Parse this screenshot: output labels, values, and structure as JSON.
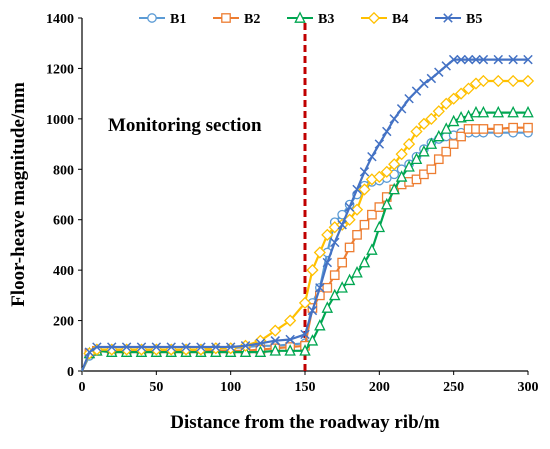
{
  "chart_data": {
    "type": "line",
    "title": "",
    "xlabel": "Distance from the roadway rib/m",
    "ylabel": "Floor-heave magnitude/mm",
    "xlim": [
      0,
      300
    ],
    "ylim": [
      0,
      1400
    ],
    "x_ticks": [
      0,
      50,
      100,
      150,
      200,
      250,
      300
    ],
    "y_ticks": [
      0,
      200,
      400,
      600,
      800,
      1000,
      1200,
      1400
    ],
    "grid": false,
    "legend_position": "top",
    "annotation": {
      "label": "Monitoring section",
      "x": 150,
      "line_color": "#c00000",
      "line_style": "dashed"
    },
    "series": [
      {
        "name": "B1",
        "color": "#5b9bd5",
        "marker": "circle",
        "points": [
          [
            0,
            0
          ],
          [
            5,
            60
          ],
          [
            10,
            80
          ],
          [
            20,
            85
          ],
          [
            30,
            85
          ],
          [
            40,
            85
          ],
          [
            50,
            85
          ],
          [
            60,
            85
          ],
          [
            70,
            85
          ],
          [
            80,
            85
          ],
          [
            90,
            90
          ],
          [
            100,
            90
          ],
          [
            110,
            95
          ],
          [
            120,
            100
          ],
          [
            130,
            100
          ],
          [
            140,
            105
          ],
          [
            150,
            110
          ],
          [
            155,
            270
          ],
          [
            160,
            330
          ],
          [
            165,
            470
          ],
          [
            170,
            590
          ],
          [
            175,
            620
          ],
          [
            180,
            660
          ],
          [
            185,
            700
          ],
          [
            190,
            735
          ],
          [
            195,
            750
          ],
          [
            200,
            755
          ],
          [
            205,
            765
          ],
          [
            210,
            780
          ],
          [
            215,
            800
          ],
          [
            220,
            820
          ],
          [
            225,
            850
          ],
          [
            230,
            880
          ],
          [
            235,
            905
          ],
          [
            240,
            920
          ],
          [
            245,
            930
          ],
          [
            250,
            935
          ],
          [
            255,
            945
          ],
          [
            260,
            945
          ],
          [
            265,
            945
          ],
          [
            270,
            945
          ],
          [
            280,
            945
          ],
          [
            290,
            945
          ],
          [
            300,
            945
          ]
        ]
      },
      {
        "name": "B2",
        "color": "#ed7d31",
        "marker": "square",
        "points": [
          [
            0,
            0
          ],
          [
            5,
            70
          ],
          [
            10,
            80
          ],
          [
            20,
            80
          ],
          [
            30,
            80
          ],
          [
            40,
            80
          ],
          [
            50,
            80
          ],
          [
            60,
            80
          ],
          [
            70,
            80
          ],
          [
            80,
            80
          ],
          [
            90,
            80
          ],
          [
            100,
            80
          ],
          [
            110,
            80
          ],
          [
            120,
            85
          ],
          [
            130,
            90
          ],
          [
            140,
            95
          ],
          [
            150,
            100
          ],
          [
            155,
            250
          ],
          [
            160,
            300
          ],
          [
            165,
            330
          ],
          [
            170,
            380
          ],
          [
            175,
            430
          ],
          [
            180,
            490
          ],
          [
            185,
            540
          ],
          [
            190,
            580
          ],
          [
            195,
            620
          ],
          [
            200,
            650
          ],
          [
            205,
            690
          ],
          [
            210,
            720
          ],
          [
            215,
            740
          ],
          [
            220,
            750
          ],
          [
            225,
            760
          ],
          [
            230,
            780
          ],
          [
            235,
            800
          ],
          [
            240,
            840
          ],
          [
            245,
            870
          ],
          [
            250,
            900
          ],
          [
            255,
            930
          ],
          [
            260,
            960
          ],
          [
            265,
            960
          ],
          [
            270,
            960
          ],
          [
            280,
            960
          ],
          [
            290,
            965
          ],
          [
            300,
            965
          ]
        ]
      },
      {
        "name": "B3",
        "color": "#00a651",
        "marker": "triangle",
        "points": [
          [
            0,
            0
          ],
          [
            5,
            70
          ],
          [
            10,
            80
          ],
          [
            20,
            75
          ],
          [
            30,
            75
          ],
          [
            40,
            75
          ],
          [
            50,
            75
          ],
          [
            60,
            75
          ],
          [
            70,
            75
          ],
          [
            80,
            75
          ],
          [
            90,
            75
          ],
          [
            100,
            75
          ],
          [
            110,
            75
          ],
          [
            120,
            75
          ],
          [
            130,
            80
          ],
          [
            140,
            80
          ],
          [
            150,
            80
          ],
          [
            155,
            120
          ],
          [
            160,
            180
          ],
          [
            165,
            250
          ],
          [
            170,
            300
          ],
          [
            175,
            330
          ],
          [
            180,
            360
          ],
          [
            185,
            390
          ],
          [
            190,
            430
          ],
          [
            195,
            480
          ],
          [
            200,
            570
          ],
          [
            205,
            660
          ],
          [
            210,
            720
          ],
          [
            215,
            770
          ],
          [
            220,
            810
          ],
          [
            225,
            840
          ],
          [
            230,
            870
          ],
          [
            235,
            900
          ],
          [
            240,
            930
          ],
          [
            245,
            960
          ],
          [
            250,
            990
          ],
          [
            255,
            1005
          ],
          [
            260,
            1010
          ],
          [
            265,
            1025
          ],
          [
            270,
            1025
          ],
          [
            280,
            1025
          ],
          [
            290,
            1025
          ],
          [
            300,
            1025
          ]
        ]
      },
      {
        "name": "B4",
        "color": "#ffc000",
        "marker": "diamond",
        "points": [
          [
            0,
            0
          ],
          [
            5,
            70
          ],
          [
            10,
            85
          ],
          [
            20,
            85
          ],
          [
            30,
            85
          ],
          [
            40,
            85
          ],
          [
            50,
            85
          ],
          [
            60,
            85
          ],
          [
            70,
            85
          ],
          [
            80,
            85
          ],
          [
            90,
            90
          ],
          [
            100,
            90
          ],
          [
            110,
            100
          ],
          [
            120,
            120
          ],
          [
            130,
            160
          ],
          [
            140,
            200
          ],
          [
            150,
            270
          ],
          [
            155,
            400
          ],
          [
            160,
            470
          ],
          [
            165,
            540
          ],
          [
            170,
            570
          ],
          [
            175,
            580
          ],
          [
            180,
            600
          ],
          [
            185,
            640
          ],
          [
            190,
            720
          ],
          [
            195,
            760
          ],
          [
            200,
            770
          ],
          [
            205,
            790
          ],
          [
            210,
            820
          ],
          [
            215,
            860
          ],
          [
            220,
            900
          ],
          [
            225,
            950
          ],
          [
            230,
            980
          ],
          [
            235,
            1000
          ],
          [
            240,
            1030
          ],
          [
            245,
            1060
          ],
          [
            250,
            1080
          ],
          [
            255,
            1100
          ],
          [
            260,
            1120
          ],
          [
            265,
            1140
          ],
          [
            270,
            1150
          ],
          [
            280,
            1150
          ],
          [
            290,
            1150
          ],
          [
            300,
            1150
          ]
        ]
      },
      {
        "name": "B5",
        "color": "#4472c4",
        "marker": "x",
        "points": [
          [
            0,
            0
          ],
          [
            5,
            75
          ],
          [
            10,
            95
          ],
          [
            20,
            95
          ],
          [
            30,
            95
          ],
          [
            40,
            95
          ],
          [
            50,
            95
          ],
          [
            60,
            95
          ],
          [
            70,
            95
          ],
          [
            80,
            95
          ],
          [
            90,
            95
          ],
          [
            100,
            95
          ],
          [
            110,
            100
          ],
          [
            120,
            110
          ],
          [
            130,
            120
          ],
          [
            140,
            125
          ],
          [
            150,
            145
          ],
          [
            155,
            240
          ],
          [
            160,
            330
          ],
          [
            165,
            430
          ],
          [
            170,
            510
          ],
          [
            175,
            580
          ],
          [
            180,
            650
          ],
          [
            185,
            720
          ],
          [
            190,
            790
          ],
          [
            195,
            850
          ],
          [
            200,
            900
          ],
          [
            205,
            950
          ],
          [
            210,
            1000
          ],
          [
            215,
            1040
          ],
          [
            220,
            1080
          ],
          [
            225,
            1110
          ],
          [
            230,
            1140
          ],
          [
            235,
            1160
          ],
          [
            240,
            1185
          ],
          [
            245,
            1210
          ],
          [
            250,
            1235
          ],
          [
            255,
            1235
          ],
          [
            260,
            1235
          ],
          [
            265,
            1235
          ],
          [
            270,
            1235
          ],
          [
            280,
            1235
          ],
          [
            290,
            1235
          ],
          [
            300,
            1235
          ]
        ]
      }
    ]
  }
}
